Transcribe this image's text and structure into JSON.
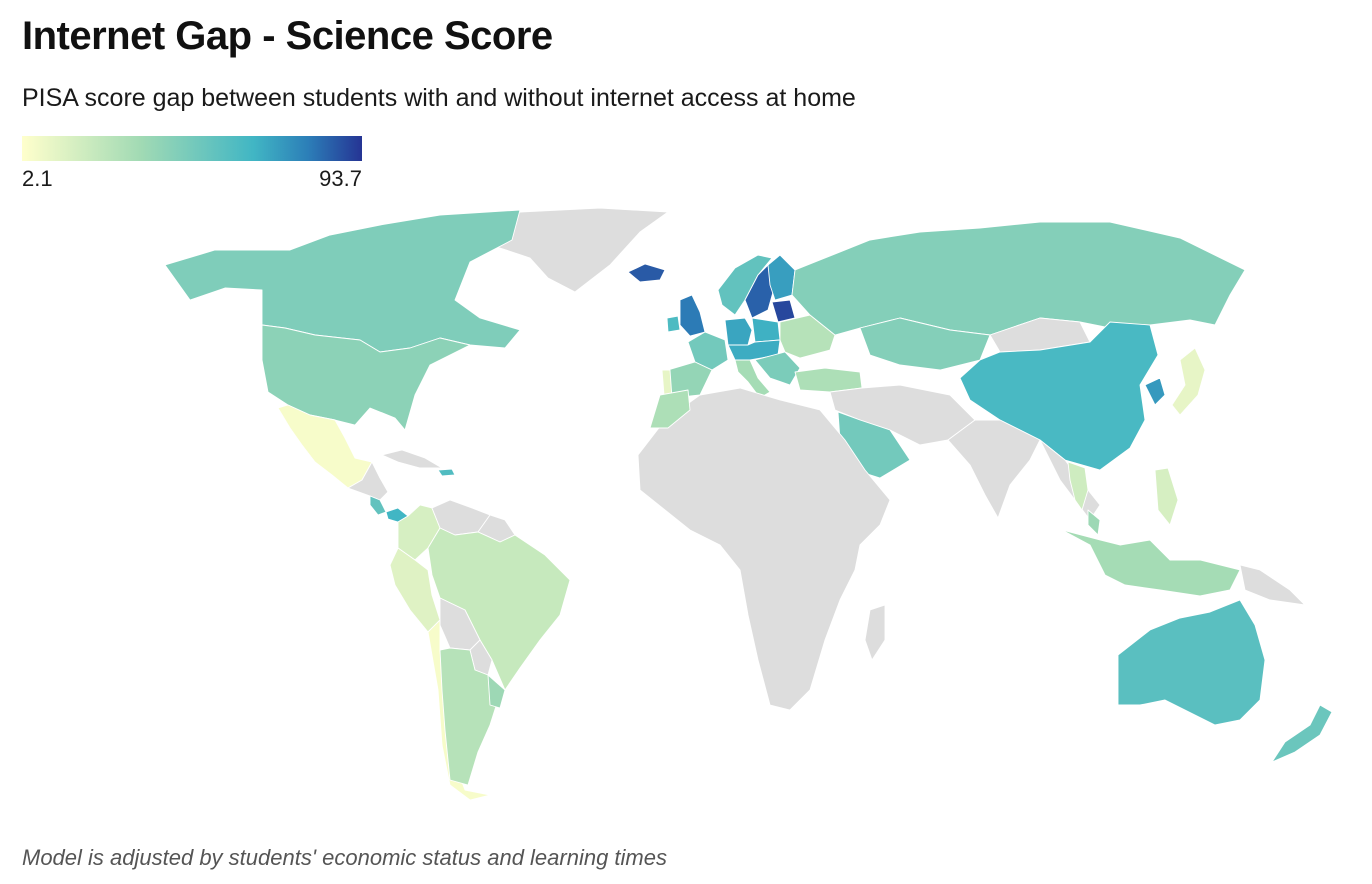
{
  "header": {
    "title": "Internet Gap - Science Score",
    "subtitle": "PISA score gap between students with and without internet access at home"
  },
  "legend": {
    "min_label": "2.1",
    "max_label": "93.7",
    "scale": {
      "min": 2.1,
      "max": 93.7
    },
    "colors": [
      "#ffffcc",
      "#a1dab4",
      "#41b6c4",
      "#2c7fb8",
      "#253494"
    ]
  },
  "colors": {
    "no_data": "#dddddd",
    "border": "#ffffff"
  },
  "note": "Model is adjusted by students' economic status and learning times",
  "map_data": {
    "countries": [
      {
        "id": "greenland",
        "name": "Greenland"
      },
      {
        "id": "canada",
        "name": "Canada",
        "value": 33
      },
      {
        "id": "usa",
        "name": "United States",
        "value": 30
      },
      {
        "id": "mexico",
        "name": "Mexico",
        "value": 4
      },
      {
        "id": "central-america",
        "name": "Central America"
      },
      {
        "id": "panama",
        "name": "Panama",
        "value": 48
      },
      {
        "id": "costa-rica",
        "name": "Costa Rica",
        "value": 40
      },
      {
        "id": "cuba",
        "name": "Cuba"
      },
      {
        "id": "dominican-republic",
        "name": "Dominican Republic",
        "value": 44
      },
      {
        "id": "colombia",
        "name": "Colombia",
        "value": 12
      },
      {
        "id": "venezuela",
        "name": "Venezuela"
      },
      {
        "id": "guianas",
        "name": "Guyana / Suriname"
      },
      {
        "id": "peru",
        "name": "Peru",
        "value": 10
      },
      {
        "id": "brazil",
        "name": "Brazil",
        "value": 16
      },
      {
        "id": "bolivia",
        "name": "Bolivia"
      },
      {
        "id": "paraguay",
        "name": "Paraguay"
      },
      {
        "id": "chile",
        "name": "Chile",
        "value": 4
      },
      {
        "id": "argentina",
        "name": "Argentina",
        "value": 20
      },
      {
        "id": "uruguay",
        "name": "Uruguay",
        "value": 26
      },
      {
        "id": "iceland",
        "name": "Iceland",
        "value": 82
      },
      {
        "id": "united-kingdom",
        "name": "United Kingdom",
        "value": 72
      },
      {
        "id": "ireland",
        "name": "Ireland",
        "value": 45
      },
      {
        "id": "norway",
        "name": "Norway",
        "value": 40
      },
      {
        "id": "sweden",
        "name": "Sweden",
        "value": 80
      },
      {
        "id": "finland",
        "name": "Finland",
        "value": 58
      },
      {
        "id": "baltics",
        "name": "Baltic States",
        "value": 88
      },
      {
        "id": "france",
        "name": "France",
        "value": 36
      },
      {
        "id": "spain",
        "name": "Spain",
        "value": 28
      },
      {
        "id": "portugal",
        "name": "Portugal",
        "value": 8
      },
      {
        "id": "germany",
        "name": "Germany",
        "value": 55
      },
      {
        "id": "poland",
        "name": "Poland",
        "value": 50
      },
      {
        "id": "central-europe",
        "name": "Central Europe",
        "value": 52
      },
      {
        "id": "italy",
        "name": "Italy",
        "value": 24
      },
      {
        "id": "balkans",
        "name": "Balkans",
        "value": 34
      },
      {
        "id": "eastern-europe",
        "name": "Eastern Europe",
        "value": 20
      },
      {
        "id": "russia",
        "name": "Russia",
        "value": 32
      },
      {
        "id": "kazakhstan",
        "name": "Kazakhstan",
        "value": 32
      },
      {
        "id": "mongolia",
        "name": "Mongolia"
      },
      {
        "id": "china",
        "name": "China",
        "value": 46
      },
      {
        "id": "korea",
        "name": "South Korea",
        "value": 60
      },
      {
        "id": "japan",
        "name": "Japan",
        "value": 8
      },
      {
        "id": "turkey",
        "name": "Turkey",
        "value": 22
      },
      {
        "id": "middle-east",
        "name": "Middle East"
      },
      {
        "id": "saudi-arabia",
        "name": "Saudi Arabia",
        "value": 36
      },
      {
        "id": "india",
        "name": "India"
      },
      {
        "id": "southeast-asia",
        "name": "Southeast Asia"
      },
      {
        "id": "thailand",
        "name": "Thailand",
        "value": 14
      },
      {
        "id": "philippines",
        "name": "Philippines",
        "value": 12
      },
      {
        "id": "malaysia",
        "name": "Malaysia",
        "value": 26
      },
      {
        "id": "indonesia",
        "name": "Indonesia",
        "value": 24
      },
      {
        "id": "new-guinea",
        "name": "New Guinea"
      },
      {
        "id": "africa",
        "name": "Africa"
      },
      {
        "id": "morocco",
        "name": "Morocco",
        "value": 22
      },
      {
        "id": "madagascar",
        "name": "Madagascar"
      },
      {
        "id": "australia",
        "name": "Australia",
        "value": 42
      },
      {
        "id": "new-zealand",
        "name": "New Zealand",
        "value": 38
      }
    ]
  }
}
